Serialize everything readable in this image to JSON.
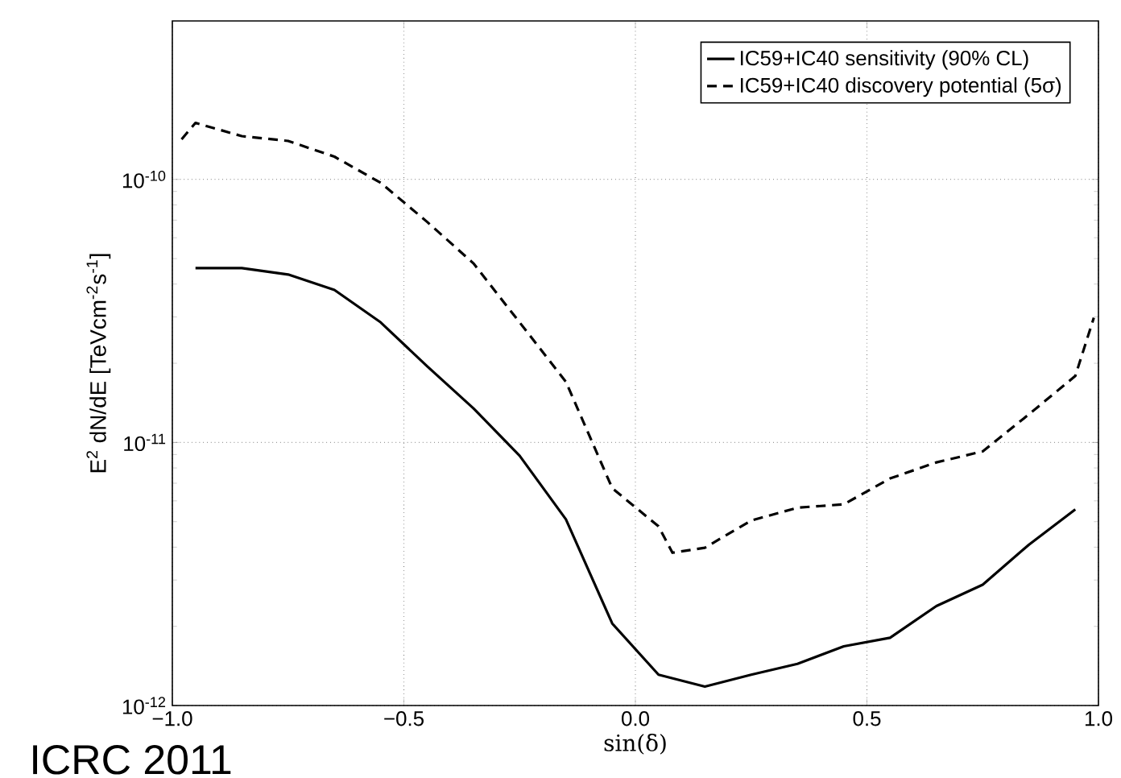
{
  "chart_data": {
    "type": "line",
    "xlabel": "sin(δ)",
    "ylabel": "E$^{2}$ dN/dE [TeVcm$^{-2}$s$^{-1}$]",
    "log": "y",
    "grid": true,
    "legend": "top right",
    "xlim": [
      -1,
      1
    ],
    "ylim": [
      1e-12,
      4e-10
    ],
    "xticks": [
      {
        "value": -1,
        "label": "−1.0"
      },
      {
        "value": -0.5,
        "label": "−0.5"
      },
      {
        "value": 0,
        "label": "0.0"
      },
      {
        "value": 0.5,
        "label": "0.5"
      },
      {
        "value": 1,
        "label": "1.0"
      }
    ],
    "yticks": [
      {
        "value": 1e-12,
        "label": "10$^{-12}$"
      },
      {
        "value": 1e-11,
        "label": "10$^{-11}$"
      },
      {
        "value": 1e-10,
        "label": "10$^{-10}$"
      }
    ],
    "series": [
      {
        "name": "IC59+IC40 sensitivity (90% CL)",
        "color": "#000000",
        "line_style": "solid",
        "x": [
          -0.95,
          -0.85,
          -0.75,
          -0.65,
          -0.55,
          -0.45,
          -0.35,
          -0.25,
          -0.15,
          -0.05,
          0.05,
          0.15,
          0.25,
          0.35,
          0.45,
          0.55,
          0.65,
          0.75,
          0.85,
          0.95
        ],
        "values": [
          4.6e-11,
          4.6e-11,
          4.35e-11,
          3.8e-11,
          2.86e-11,
          1.95e-11,
          1.35e-11,
          8.9e-12,
          5.1e-12,
          2.05e-12,
          1.31e-12,
          1.18e-12,
          1.31e-12,
          1.44e-12,
          1.68e-12,
          1.81e-12,
          2.39e-12,
          2.88e-12,
          4.09e-12,
          5.57e-12
        ]
      },
      {
        "name": "IC59+IC40 discovery potential (5σ)",
        "color": "#000000",
        "line_style": "dashed",
        "x": [
          -0.98,
          -0.95,
          -0.85,
          -0.75,
          -0.65,
          -0.55,
          -0.45,
          -0.35,
          -0.25,
          -0.15,
          -0.05,
          0.05,
          0.08,
          0.15,
          0.25,
          0.35,
          0.45,
          0.55,
          0.65,
          0.75,
          0.85,
          0.95,
          0.99
        ],
        "values": [
          1.42e-10,
          1.64e-10,
          1.46e-10,
          1.4e-10,
          1.22e-10,
          9.7e-11,
          6.9e-11,
          4.8e-11,
          2.86e-11,
          1.7e-11,
          6.7e-12,
          4.8e-12,
          3.81e-12,
          3.98e-12,
          5.05e-12,
          5.65e-12,
          5.82e-12,
          7.3e-12,
          8.4e-12,
          9.25e-12,
          1.28e-11,
          1.79e-11,
          2.98e-11
        ]
      }
    ],
    "annotations": [
      "ICRC 2011"
    ]
  }
}
